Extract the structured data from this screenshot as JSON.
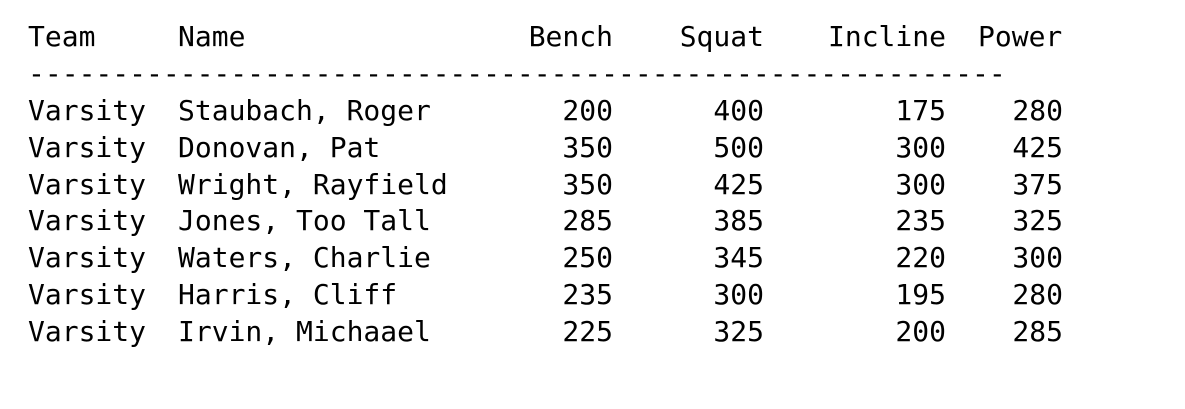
{
  "columns": {
    "team": "Team",
    "name": "Name",
    "bench": "Bench",
    "squat": "Squat",
    "incline": "Incline",
    "power": "Power"
  },
  "divider": "----------------------------------------------------------",
  "rows": [
    {
      "team": "Varsity",
      "name": "Staubach, Roger",
      "bench": "200",
      "squat": "400",
      "incline": "175",
      "power": "280"
    },
    {
      "team": "Varsity",
      "name": "Donovan, Pat",
      "bench": "350",
      "squat": "500",
      "incline": "300",
      "power": "425"
    },
    {
      "team": "Varsity",
      "name": "Wright, Rayfield",
      "bench": "350",
      "squat": "425",
      "incline": "300",
      "power": "375"
    },
    {
      "team": "Varsity",
      "name": "Jones, Too Tall",
      "bench": "285",
      "squat": "385",
      "incline": "235",
      "power": "325"
    },
    {
      "team": "Varsity",
      "name": "Waters, Charlie",
      "bench": "250",
      "squat": "345",
      "incline": "220",
      "power": "300"
    },
    {
      "team": "Varsity",
      "name": "Harris, Cliff",
      "bench": "235",
      "squat": "300",
      "incline": "195",
      "power": "280"
    },
    {
      "team": "Varsity",
      "name": "Irvin, Michaael",
      "bench": "225",
      "squat": "325",
      "incline": "200",
      "power": "285"
    }
  ]
}
